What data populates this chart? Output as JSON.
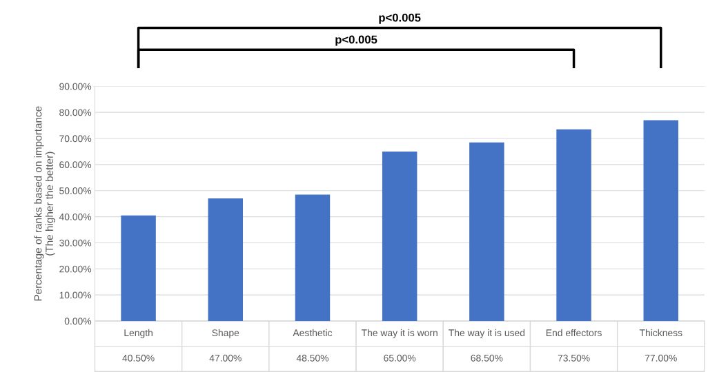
{
  "chart_data": {
    "type": "bar",
    "ylabel": "Percentage of ranks based on importance\n(The higher the better)",
    "categories": [
      "Length",
      "Shape",
      "Aesthetic",
      "The way it is worn",
      "The way it is used",
      "End effectors",
      "Thickness"
    ],
    "values": [
      40.5,
      47.0,
      48.5,
      65.0,
      68.5,
      73.5,
      77.0
    ],
    "color": "#4472c4",
    "value_labels": [
      "40.50%",
      "47.00%",
      "48.50%",
      "65.00%",
      "68.50%",
      "73.50%",
      "77.00%"
    ],
    "ylim": [
      0,
      90
    ],
    "yticks": [
      {
        "value": 0,
        "label": "0.00%"
      },
      {
        "value": 10,
        "label": "10.00%"
      },
      {
        "value": 20,
        "label": "20.00%"
      },
      {
        "value": 30,
        "label": "30.00%"
      },
      {
        "value": 40,
        "label": "40.00%"
      },
      {
        "value": 50,
        "label": "50.00%"
      },
      {
        "value": 60,
        "label": "60.00%"
      },
      {
        "value": 70,
        "label": "70.00%"
      },
      {
        "value": 80,
        "label": "80.00%"
      },
      {
        "value": 90,
        "label": "90.00%"
      }
    ],
    "grid": "y",
    "annotations": [
      "p<0.005",
      "p<0.005"
    ]
  }
}
